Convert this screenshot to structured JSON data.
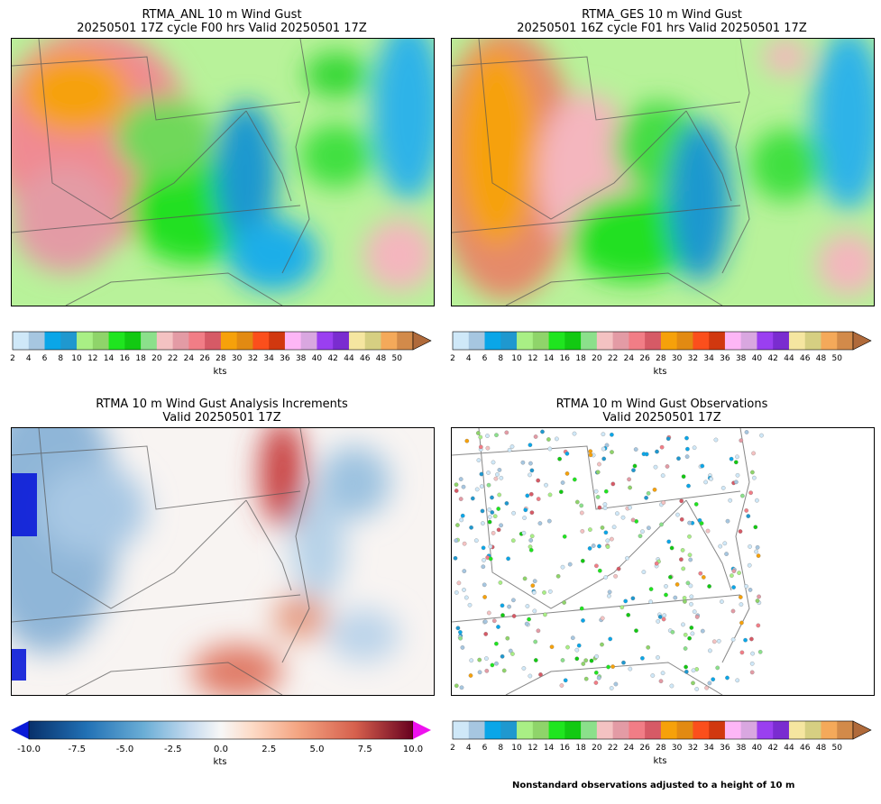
{
  "panels": {
    "top_left": {
      "title_line1": "RTMA_ANL 10 m Wind Gust",
      "title_line2": "20250501 17Z cycle F00 hrs Valid 20250501 17Z"
    },
    "top_right": {
      "title_line1": "RTMA_GES 10 m Wind Gust",
      "title_line2": "20250501 16Z cycle F01 hrs Valid 20250501 17Z"
    },
    "bottom_left": {
      "title_line1": "RTMA 10 m Wind Gust Analysis Increments",
      "title_line2": "Valid 20250501 17Z"
    },
    "bottom_right": {
      "title_line1": "RTMA 10 m Wind Gust Observations",
      "title_line2": "Valid 20250501 17Z"
    }
  },
  "gust_colorbar": {
    "unit": "kts",
    "ticks": [
      "2",
      "4",
      "6",
      "8",
      "10",
      "12",
      "14",
      "16",
      "18",
      "20",
      "22",
      "24",
      "26",
      "28",
      "30",
      "32",
      "34",
      "36",
      "38",
      "40",
      "42",
      "44",
      "46",
      "48",
      "50"
    ],
    "colors": [
      "#cfe8f8",
      "#a6c6e0",
      "#0aa6e8",
      "#1f98cf",
      "#a9ef85",
      "#8fd46a",
      "#1fe51f",
      "#12c912",
      "#8be08b",
      "#f4c2c2",
      "#e39ba5",
      "#f17d86",
      "#d65a66",
      "#f6a10a",
      "#e28a12",
      "#fb4f1c",
      "#d1380f",
      "#fdb6f6",
      "#d9a7e0",
      "#9a3ff0",
      "#7a2cd0",
      "#f5e6a0",
      "#d6cf82",
      "#f4a95a",
      "#d28a4a"
    ],
    "extend_color": "#b06a3a"
  },
  "increment_colorbar": {
    "unit": "kts",
    "ticks": [
      "-10.0",
      "-7.5",
      "-5.0",
      "-2.5",
      "0.0",
      "2.5",
      "5.0",
      "7.5",
      "10.0"
    ],
    "min_color": "#0a1ad8",
    "max_color": "#ee11ee"
  },
  "footnote": "Nonstandard observations adjusted to a height of 10 m",
  "chart_data": [
    {
      "type": "heatmap",
      "title": "RTMA_ANL 10 m Wind Gust — 20250501 17Z cycle F00 hrs Valid 20250501 17Z",
      "units": "kts",
      "colorbar_range": [
        2,
        50
      ],
      "colorbar_extend": "max"
    },
    {
      "type": "heatmap",
      "title": "RTMA_GES 10 m Wind Gust — 20250501 16Z cycle F01 hrs Valid 20250501 17Z",
      "units": "kts",
      "colorbar_range": [
        2,
        50
      ],
      "colorbar_extend": "max"
    },
    {
      "type": "heatmap",
      "title": "RTMA 10 m Wind Gust Analysis Increments — Valid 20250501 17Z",
      "units": "kts",
      "colorbar_range": [
        -10.0,
        10.0
      ],
      "colorbar_extend": "both"
    },
    {
      "type": "scatter",
      "title": "RTMA 10 m Wind Gust Observations — Valid 20250501 17Z",
      "units": "kts",
      "colorbar_range": [
        2,
        50
      ],
      "colorbar_extend": "max",
      "note": "Nonstandard observations adjusted to a height of 10 m"
    }
  ]
}
